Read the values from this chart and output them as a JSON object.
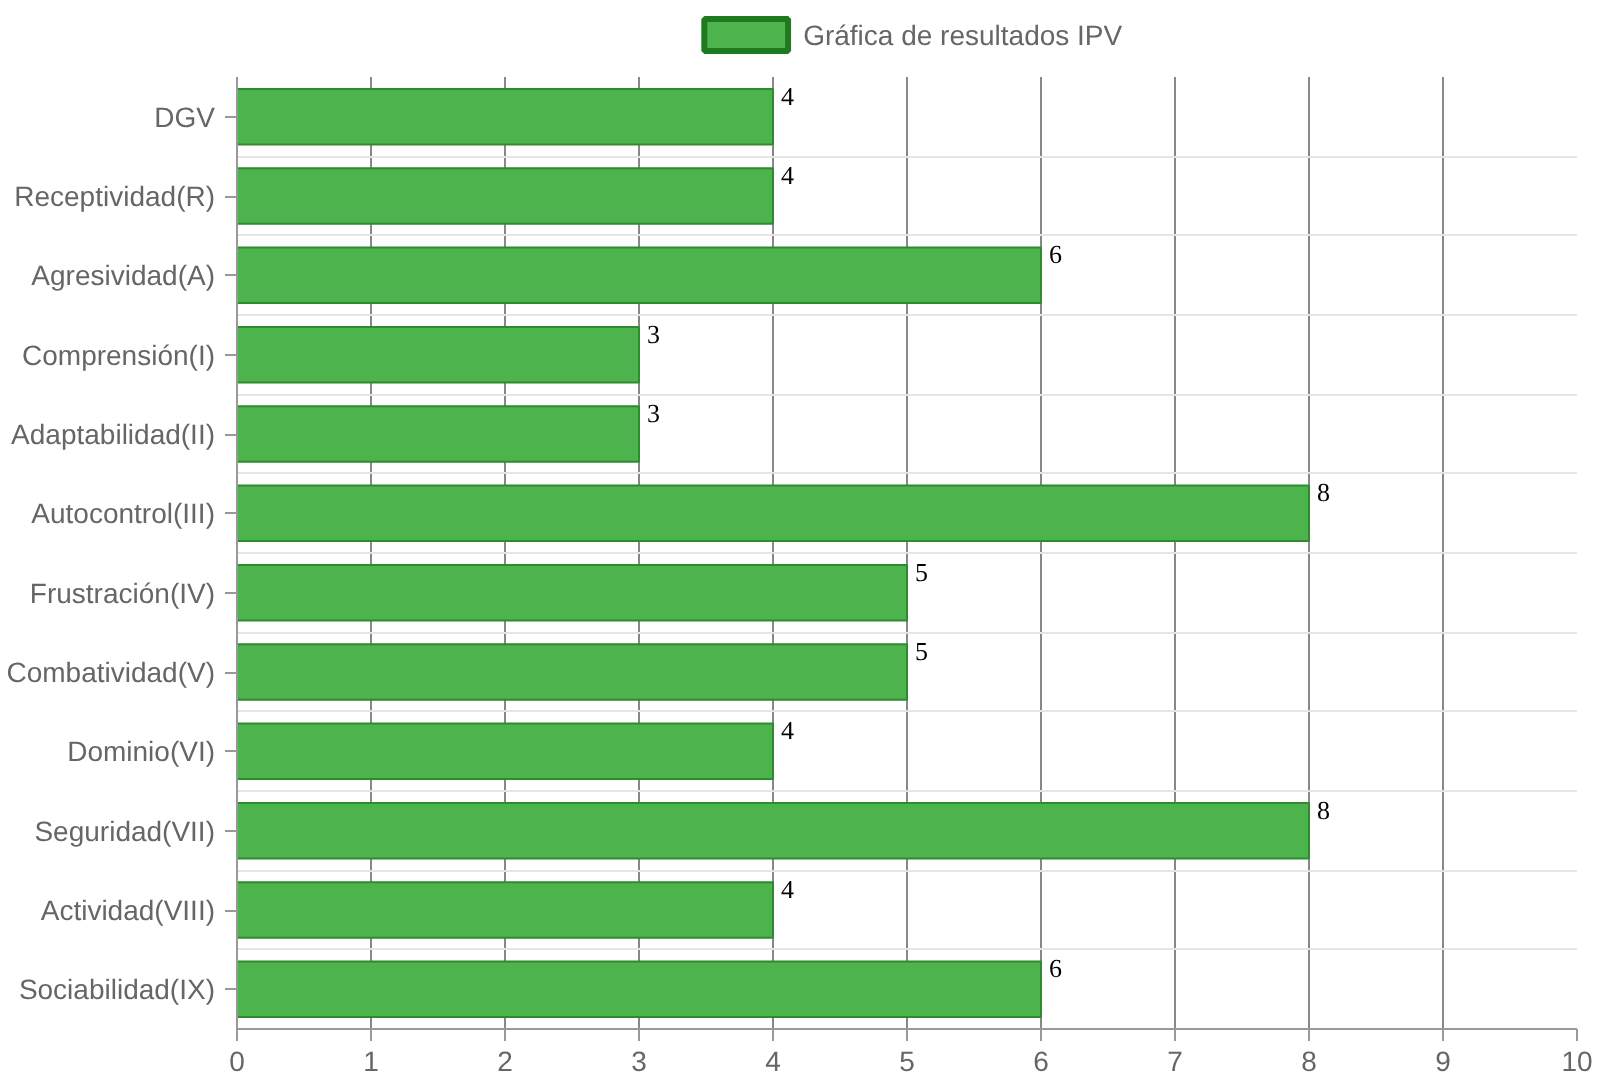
{
  "chart_data": {
    "type": "bar",
    "orientation": "horizontal",
    "categories": [
      "DGV",
      "Receptividad(R)",
      "Agresividad(A)",
      "Comprensión(I)",
      "Adaptabilidad(II)",
      "Autocontrol(III)",
      "Frustración(IV)",
      "Combatividad(V)",
      "Dominio(VI)",
      "Seguridad(VII)",
      "Actividad(VIII)",
      "Sociabilidad(IX)"
    ],
    "series": [
      {
        "name": "Gráfica de resultados IPV",
        "color": "#4db34d",
        "values": [
          4,
          4,
          6,
          3,
          3,
          8,
          5,
          5,
          4,
          8,
          4,
          6
        ]
      }
    ],
    "xlim": [
      0,
      10
    ],
    "xticks": [
      0,
      1,
      2,
      3,
      4,
      5,
      6,
      7,
      8,
      9,
      10
    ],
    "grid": true,
    "legend": "top",
    "data_labels": true
  }
}
